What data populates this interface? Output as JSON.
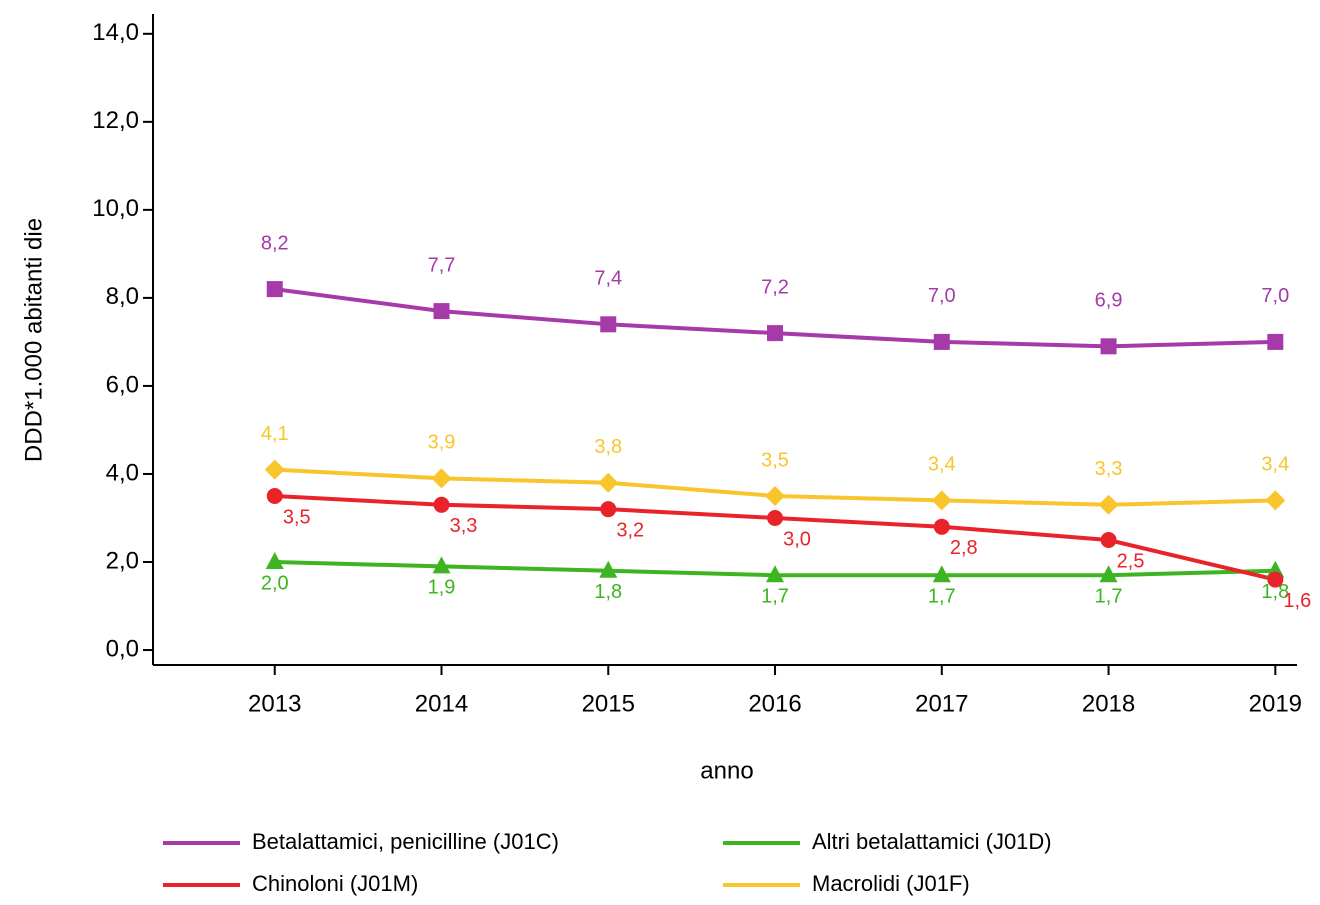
{
  "chart_data": {
    "type": "line",
    "y_label": "DDD*1.000 abitanti die",
    "x_label": "anno",
    "x": [
      2013,
      2014,
      2015,
      2016,
      2017,
      2018,
      2019
    ],
    "xlim": [
      2012.27,
      2019.13
    ],
    "xticks": [
      2013,
      2014,
      2015,
      2016,
      2017,
      2018,
      2019
    ],
    "ylim": [
      -0.34,
      14.45
    ],
    "yticks": [
      {
        "value": 0,
        "label": "0,0"
      },
      {
        "value": 2,
        "label": "2,0"
      },
      {
        "value": 4,
        "label": "4,0"
      },
      {
        "value": 6,
        "label": "6,0"
      },
      {
        "value": 8,
        "label": "8,0"
      },
      {
        "value": 10,
        "label": "10,0"
      },
      {
        "value": 12,
        "label": "12,0"
      },
      {
        "value": 14,
        "label": "14,0"
      }
    ],
    "grid": false,
    "series": [
      {
        "name": "Betalattamici, penicilline (J01C)",
        "color": "#a53aa8",
        "marker": "square",
        "values": [
          8.2,
          7.7,
          7.4,
          7.2,
          7.0,
          6.9,
          7.0
        ],
        "value_labels": [
          "8,2",
          "7,7",
          "7,4",
          "7,2",
          "7,0",
          "6,9",
          "7,0"
        ]
      },
      {
        "name": "Altri betalattamici (J01D)",
        "color": "#3db521",
        "marker": "triangle",
        "values": [
          2.0,
          1.9,
          1.8,
          1.7,
          1.7,
          1.7,
          1.8
        ],
        "value_labels": [
          "2,0",
          "1,9",
          "1,8",
          "1,7",
          "1,7",
          "1,7",
          "1,8"
        ]
      },
      {
        "name": "Chinoloni (J01M)",
        "color": "#e8242a",
        "marker": "circle",
        "values": [
          3.5,
          3.3,
          3.2,
          3.0,
          2.8,
          2.5,
          1.6
        ],
        "value_labels": [
          "3,5",
          "3,3",
          "3,2",
          "3,0",
          "2,8",
          "2,5",
          "1,6"
        ]
      },
      {
        "name": "Macrolidi (J01F)",
        "color": "#f8c52c",
        "marker": "diamond",
        "values": [
          4.1,
          3.9,
          3.8,
          3.5,
          3.4,
          3.3,
          3.4
        ],
        "value_labels": [
          "4,1",
          "3,9",
          "3,8",
          "3,5",
          "3,4",
          "3,3",
          "3,4"
        ]
      }
    ]
  }
}
